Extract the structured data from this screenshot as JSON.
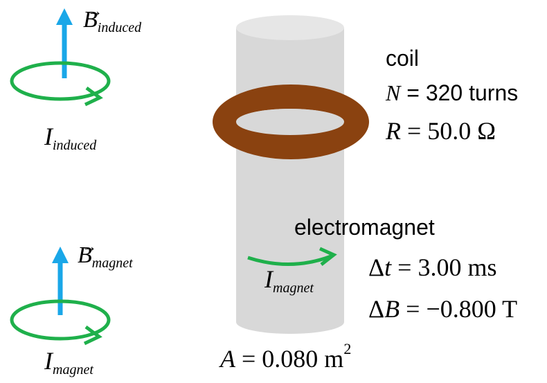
{
  "colors": {
    "field_arrow": "#1aa7e8",
    "current_loop": "#1fb04b",
    "coil": "#8a4210",
    "cylinder": "#d8d8d8"
  },
  "fields": {
    "b_symbol": "B",
    "b_induced_sub": "induced",
    "b_magnet_sub": "magnet"
  },
  "currents": {
    "i_symbol": "I",
    "i_induced_sub": "induced",
    "i_magnet_sub": "magnet"
  },
  "coil": {
    "label": "coil",
    "n_symbol": "N",
    "n_eq": " = 320 turns",
    "r_symbol": "R",
    "r_eq": " = 50.0 Ω"
  },
  "electromagnet": {
    "label": "electromagnet",
    "dt_prefix": "Δ",
    "dt_symbol": "t",
    "dt_eq": " = 3.00 ms",
    "db_prefix": "Δ",
    "db_symbol": "B",
    "db_eq": " = −0.800 T",
    "area_symbol": "A",
    "area_eq": " = 0.080 m",
    "area_exp": "2"
  }
}
